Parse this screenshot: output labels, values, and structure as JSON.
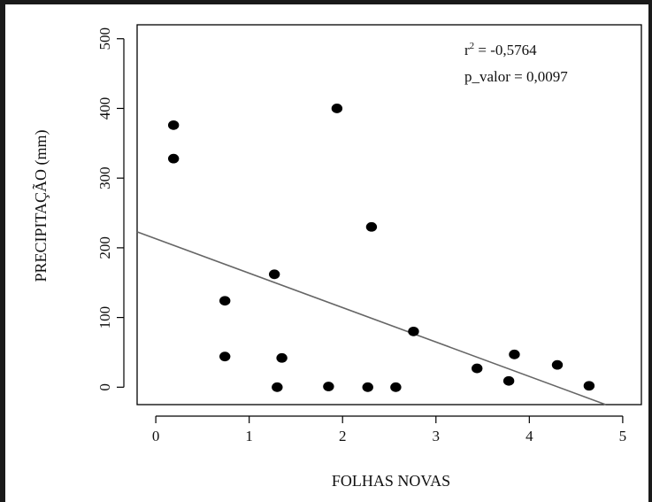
{
  "chart_data": {
    "type": "scatter",
    "title": "",
    "xlabel": "FOLHAS NOVAS",
    "ylabel": "PRECIPITAÇÃO (mm)",
    "xlim": [
      -0.2,
      5.2
    ],
    "ylim": [
      -25,
      520
    ],
    "xticks": [
      0,
      1,
      2,
      3,
      4,
      5
    ],
    "yticks": [
      0,
      100,
      200,
      300,
      400,
      500
    ],
    "xtick_labels": [
      "0",
      "1",
      "2",
      "3",
      "4",
      "5"
    ],
    "ytick_labels": [
      "0",
      "100",
      "200",
      "300",
      "400",
      "500"
    ],
    "grid": false,
    "legend": "none",
    "series": [
      {
        "points": [
          {
            "x": 0.19,
            "y": 376
          },
          {
            "x": 0.19,
            "y": 328
          },
          {
            "x": 0.74,
            "y": 124
          },
          {
            "x": 0.74,
            "y": 44
          },
          {
            "x": 1.27,
            "y": 162
          },
          {
            "x": 1.3,
            "y": 0
          },
          {
            "x": 1.35,
            "y": 42
          },
          {
            "x": 1.85,
            "y": 1
          },
          {
            "x": 1.94,
            "y": 400
          },
          {
            "x": 2.27,
            "y": 0
          },
          {
            "x": 2.31,
            "y": 230
          },
          {
            "x": 2.57,
            "y": 0
          },
          {
            "x": 2.76,
            "y": 80
          },
          {
            "x": 3.44,
            "y": 27
          },
          {
            "x": 3.78,
            "y": 9
          },
          {
            "x": 3.84,
            "y": 47
          },
          {
            "x": 4.3,
            "y": 32
          },
          {
            "x": 4.64,
            "y": 2
          }
        ]
      }
    ],
    "regression_line": {
      "intercept": 213,
      "slope": -49.4
    },
    "annotations": {
      "r2_prefix": "r",
      "r2_sup": "2",
      "r2_value": " = -0,5764",
      "p_text": "p_valor = 0,0097"
    },
    "colors": {
      "points": "#000000",
      "line": "#666666",
      "axes": "#000000"
    }
  }
}
